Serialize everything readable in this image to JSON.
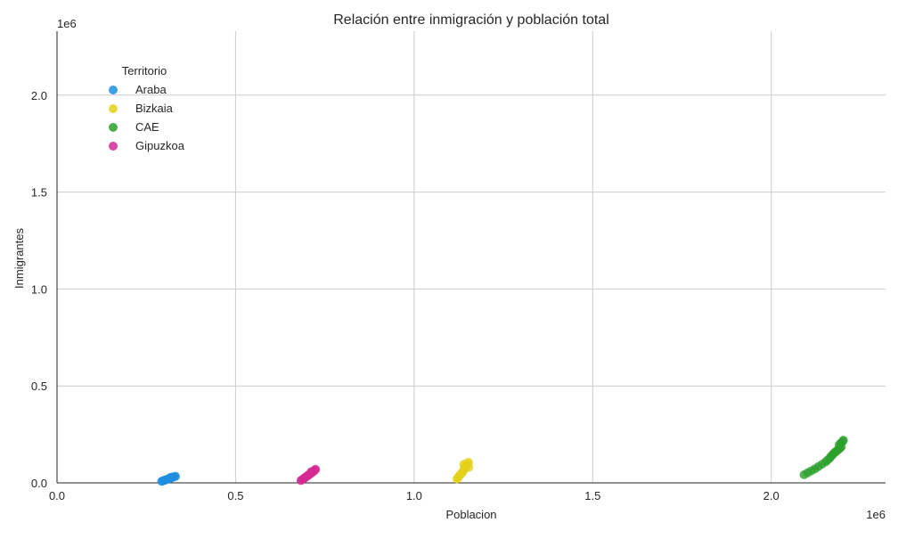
{
  "chart_data": {
    "type": "scatter",
    "title": "Relación entre inmigración y población total",
    "xlabel": "Poblacion",
    "ylabel": "Inmigrantes",
    "x_offset_label": "1e6",
    "y_offset_label": "1e6",
    "xlim": [
      0,
      2320000
    ],
    "ylim": [
      0,
      2330000
    ],
    "x_ticks": [
      {
        "value": 0,
        "label": "0.0"
      },
      {
        "value": 500000,
        "label": "0.5"
      },
      {
        "value": 1000000,
        "label": "1.0"
      },
      {
        "value": 1500000,
        "label": "1.5"
      },
      {
        "value": 2000000,
        "label": "2.0"
      }
    ],
    "y_ticks": [
      {
        "value": 0,
        "label": "0.0"
      },
      {
        "value": 500000,
        "label": "0.5"
      },
      {
        "value": 1000000,
        "label": "1.0"
      },
      {
        "value": 1500000,
        "label": "1.5"
      },
      {
        "value": 2000000,
        "label": "2.0"
      }
    ],
    "grid": true,
    "legend": {
      "title": "Territorio",
      "placement": "top-left"
    },
    "series": [
      {
        "name": "Araba",
        "color": "#1f8fe0",
        "points": [
          [
            293000,
            8000
          ],
          [
            296000,
            10000
          ],
          [
            299000,
            12000
          ],
          [
            302000,
            14000
          ],
          [
            305000,
            16000
          ],
          [
            308000,
            18000
          ],
          [
            311000,
            20000
          ],
          [
            314000,
            22000
          ],
          [
            317000,
            24000
          ],
          [
            320000,
            26000
          ],
          [
            323000,
            28000
          ],
          [
            326000,
            30000
          ],
          [
            329000,
            32000
          ],
          [
            332000,
            34000
          ],
          [
            322000,
            30000
          ],
          [
            318000,
            28000
          ]
        ]
      },
      {
        "name": "Bizkaia",
        "color": "#e3d21a",
        "points": [
          [
            1120000,
            20000
          ],
          [
            1122000,
            26000
          ],
          [
            1125000,
            32000
          ],
          [
            1128000,
            40000
          ],
          [
            1131000,
            46000
          ],
          [
            1134000,
            52000
          ],
          [
            1136000,
            58000
          ],
          [
            1138000,
            64000
          ],
          [
            1140000,
            70000
          ],
          [
            1142000,
            76000
          ],
          [
            1144000,
            82000
          ],
          [
            1146000,
            88000
          ],
          [
            1148000,
            94000
          ],
          [
            1150000,
            100000
          ],
          [
            1152000,
            106000
          ],
          [
            1139000,
            96000
          ],
          [
            1143000,
            90000
          ],
          [
            1153000,
            80000
          ]
        ]
      },
      {
        "name": "CAE",
        "color": "#2ca02c",
        "points": [
          [
            2092000,
            42000
          ],
          [
            2102000,
            52000
          ],
          [
            2112000,
            62000
          ],
          [
            2122000,
            72000
          ],
          [
            2132000,
            84000
          ],
          [
            2142000,
            96000
          ],
          [
            2152000,
            108000
          ],
          [
            2158000,
            118000
          ],
          [
            2164000,
            128000
          ],
          [
            2168000,
            138000
          ],
          [
            2172000,
            146000
          ],
          [
            2176000,
            154000
          ],
          [
            2180000,
            160000
          ],
          [
            2184000,
            166000
          ],
          [
            2188000,
            172000
          ],
          [
            2192000,
            178000
          ],
          [
            2196000,
            186000
          ],
          [
            2190000,
            196000
          ],
          [
            2194000,
            204000
          ],
          [
            2200000,
            214000
          ],
          [
            2202000,
            220000
          ]
        ]
      },
      {
        "name": "Gipuzkoa",
        "color": "#d42a94",
        "points": [
          [
            683000,
            12000
          ],
          [
            686000,
            16000
          ],
          [
            689000,
            20000
          ],
          [
            692000,
            24000
          ],
          [
            695000,
            28000
          ],
          [
            698000,
            32000
          ],
          [
            701000,
            36000
          ],
          [
            704000,
            40000
          ],
          [
            707000,
            44000
          ],
          [
            710000,
            48000
          ],
          [
            713000,
            52000
          ],
          [
            716000,
            56000
          ],
          [
            719000,
            60000
          ],
          [
            722000,
            66000
          ],
          [
            724000,
            70000
          ],
          [
            712000,
            58000
          ]
        ]
      }
    ]
  }
}
